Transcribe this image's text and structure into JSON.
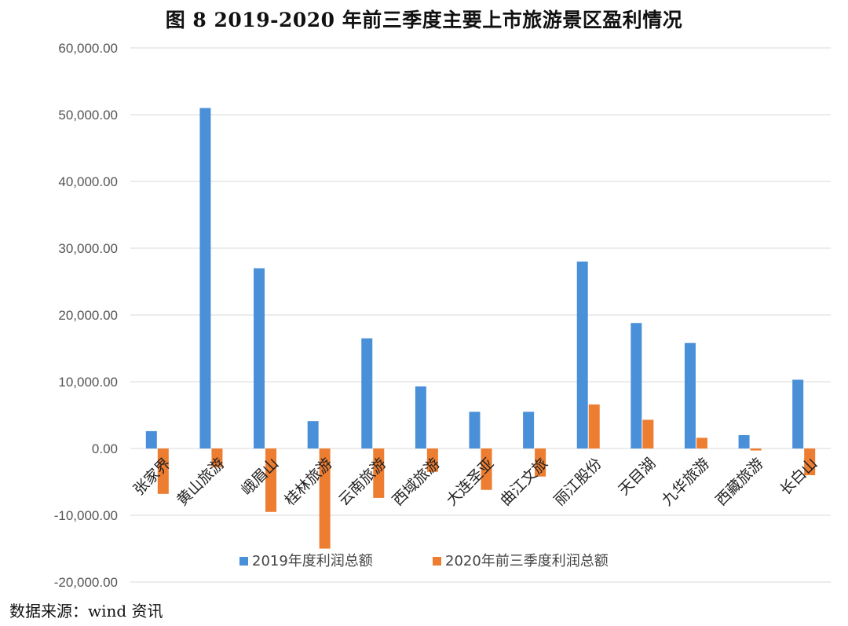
{
  "title": "图 8    2019-2020 年前三季度主要上市旅游景区盈利情况",
  "source": "数据来源：wind 资讯",
  "colors": {
    "series1": "#4a90d9",
    "series2": "#ed7d31",
    "grid": "#d9d9d9"
  },
  "chart_data": {
    "type": "bar",
    "categories": [
      "张家界",
      "黄山旅游",
      "峨眉山",
      "桂林旅游",
      "云南旅游",
      "西域旅游",
      "大连圣亚",
      "曲江文旅",
      "丽江股份",
      "天目湖",
      "九华旅游",
      "西藏旅游",
      "长白山"
    ],
    "series": [
      {
        "name": "2019年度利润总额",
        "values": [
          2600,
          51000,
          27000,
          4100,
          16500,
          9300,
          5500,
          5500,
          28000,
          18800,
          15800,
          2000,
          10300
        ]
      },
      {
        "name": "2020年前三季度利润总额",
        "values": [
          -6800,
          -2800,
          -9500,
          -15000,
          -7400,
          -3500,
          -6200,
          -4200,
          6600,
          4300,
          1600,
          -300,
          -4000
        ]
      }
    ],
    "ylim": [
      -20000,
      60000
    ],
    "yticks": [
      60000,
      50000,
      40000,
      30000,
      20000,
      10000,
      0,
      -10000,
      -20000
    ],
    "ytick_labels": [
      "60,000.00",
      "50,000.00",
      "40,000.00",
      "30,000.00",
      "20,000.00",
      "10,000.00",
      "0.00",
      "-10,000.00",
      "-20,000.00"
    ],
    "xlabel": "",
    "ylabel": "",
    "grid": true,
    "legend_position": "bottom-center"
  }
}
